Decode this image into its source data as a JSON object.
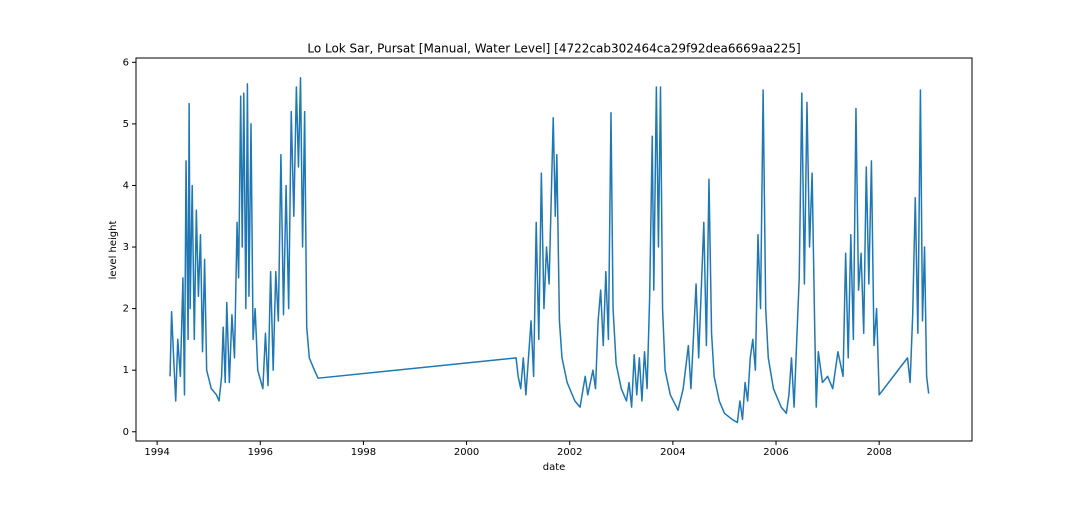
{
  "chart_data": {
    "type": "line",
    "title": "Lo Lok Sar, Pursat [Manual, Water Level] [4722cab302464ca29f92dea6669aa225]",
    "x_label": "date",
    "y_label": "level height",
    "xlim": [
      1993.59,
      2009.8
    ],
    "ylim": [
      -0.15,
      6.07
    ],
    "xticks": [
      1994,
      1996,
      1998,
      2000,
      2002,
      2004,
      2006,
      2008
    ],
    "yticks": [
      0,
      1,
      2,
      3,
      4,
      5,
      6
    ],
    "series": [
      {
        "name": "level height",
        "color": "#1f77b4",
        "x": [
          1994.25,
          1994.28,
          1994.32,
          1994.36,
          1994.4,
          1994.45,
          1994.5,
          1994.53,
          1994.56,
          1994.6,
          1994.62,
          1994.64,
          1994.68,
          1994.72,
          1994.76,
          1994.8,
          1994.84,
          1994.88,
          1994.92,
          1994.96,
          1995.05,
          1995.15,
          1995.2,
          1995.25,
          1995.28,
          1995.32,
          1995.35,
          1995.4,
          1995.45,
          1995.5,
          1995.55,
          1995.58,
          1995.62,
          1995.65,
          1995.68,
          1995.72,
          1995.75,
          1995.78,
          1995.82,
          1995.86,
          1995.9,
          1995.95,
          1996.05,
          1996.1,
          1996.15,
          1996.2,
          1996.25,
          1996.3,
          1996.35,
          1996.4,
          1996.45,
          1996.5,
          1996.55,
          1996.6,
          1996.65,
          1996.7,
          1996.74,
          1996.78,
          1996.82,
          1996.86,
          1996.9,
          1996.95,
          1997.05,
          1997.12,
          2000.96,
          2001.0,
          2001.05,
          2001.1,
          2001.15,
          2001.25,
          2001.3,
          2001.35,
          2001.4,
          2001.45,
          2001.5,
          2001.55,
          2001.6,
          2001.68,
          2001.72,
          2001.75,
          2001.8,
          2001.85,
          2001.95,
          2002.1,
          2002.2,
          2002.3,
          2002.35,
          2002.45,
          2002.5,
          2002.55,
          2002.6,
          2002.65,
          2002.7,
          2002.75,
          2002.8,
          2002.84,
          2002.9,
          2003.0,
          2003.1,
          2003.15,
          2003.2,
          2003.25,
          2003.3,
          2003.35,
          2003.4,
          2003.45,
          2003.5,
          2003.55,
          2003.6,
          2003.63,
          2003.68,
          2003.72,
          2003.76,
          2003.8,
          2003.85,
          2003.95,
          2004.1,
          2004.2,
          2004.3,
          2004.35,
          2004.45,
          2004.5,
          2004.6,
          2004.65,
          2004.7,
          2004.75,
          2004.8,
          2004.9,
          2005.0,
          2005.15,
          2005.25,
          2005.3,
          2005.35,
          2005.4,
          2005.45,
          2005.5,
          2005.55,
          2005.6,
          2005.65,
          2005.7,
          2005.75,
          2005.8,
          2005.85,
          2005.95,
          2006.1,
          2006.2,
          2006.25,
          2006.3,
          2006.35,
          2006.45,
          2006.5,
          2006.55,
          2006.6,
          2006.65,
          2006.7,
          2006.75,
          2006.78,
          2006.82,
          2006.9,
          2007.0,
          2007.1,
          2007.2,
          2007.3,
          2007.35,
          2007.4,
          2007.45,
          2007.5,
          2007.55,
          2007.6,
          2007.65,
          2007.7,
          2007.75,
          2007.8,
          2007.85,
          2007.9,
          2007.95,
          2008.0,
          2008.55,
          2008.6,
          2008.65,
          2008.7,
          2008.75,
          2008.8,
          2008.84,
          2008.88,
          2008.92,
          2008.96
        ],
        "values": [
          0.9,
          1.95,
          1.2,
          0.5,
          1.5,
          0.9,
          2.5,
          0.6,
          4.4,
          1.5,
          5.33,
          2.0,
          4.0,
          1.5,
          3.6,
          2.2,
          3.2,
          1.3,
          2.8,
          1.0,
          0.7,
          0.6,
          0.5,
          0.9,
          1.7,
          0.8,
          2.1,
          0.8,
          1.9,
          1.2,
          3.4,
          2.5,
          5.45,
          3.0,
          5.5,
          2.0,
          5.65,
          2.2,
          5.0,
          1.5,
          2.0,
          1.0,
          0.7,
          1.6,
          0.75,
          2.6,
          1.0,
          2.6,
          1.8,
          4.5,
          1.9,
          4.0,
          2.0,
          5.2,
          3.5,
          5.6,
          4.3,
          5.75,
          3.0,
          5.2,
          1.7,
          1.2,
          1.0,
          0.87,
          1.2,
          0.9,
          0.7,
          1.2,
          0.6,
          1.8,
          0.9,
          3.4,
          1.5,
          4.2,
          2.0,
          3.0,
          2.4,
          5.1,
          3.5,
          4.5,
          1.8,
          1.2,
          0.8,
          0.5,
          0.4,
          0.9,
          0.6,
          1.0,
          0.7,
          1.8,
          2.3,
          1.4,
          2.6,
          1.5,
          5.18,
          2.0,
          1.1,
          0.7,
          0.5,
          0.8,
          0.4,
          1.25,
          0.6,
          1.2,
          0.5,
          1.3,
          0.7,
          2.2,
          4.8,
          2.3,
          5.6,
          3.0,
          5.6,
          2.0,
          1.0,
          0.6,
          0.35,
          0.7,
          1.4,
          0.7,
          2.4,
          1.2,
          3.4,
          1.4,
          4.1,
          1.6,
          0.9,
          0.5,
          0.3,
          0.2,
          0.15,
          0.5,
          0.2,
          0.8,
          0.5,
          1.2,
          1.5,
          1.0,
          3.2,
          2.0,
          5.55,
          2.0,
          1.2,
          0.7,
          0.4,
          0.3,
          0.6,
          1.2,
          0.4,
          2.5,
          5.5,
          2.4,
          5.35,
          3.0,
          4.2,
          1.7,
          0.4,
          1.3,
          0.8,
          0.9,
          0.7,
          1.3,
          0.9,
          2.9,
          1.2,
          3.2,
          1.5,
          5.25,
          2.3,
          2.9,
          1.6,
          4.3,
          2.4,
          4.4,
          1.4,
          2.0,
          0.6,
          1.2,
          0.8,
          1.9,
          3.8,
          1.6,
          5.55,
          1.8,
          3.0,
          0.9,
          0.62
        ]
      }
    ]
  }
}
